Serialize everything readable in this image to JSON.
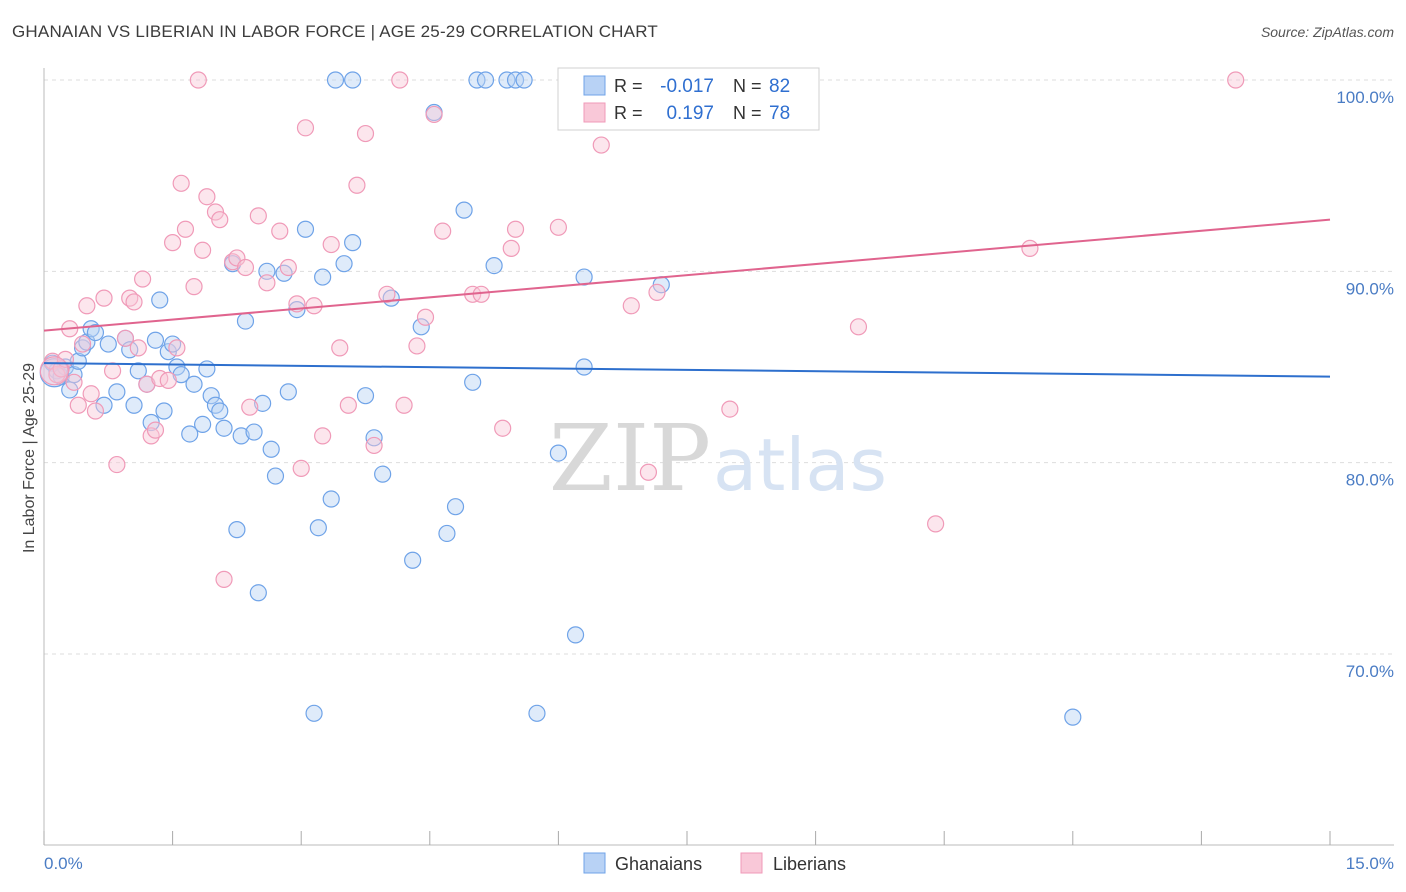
{
  "title": "GHANAIAN VS LIBERIAN IN LABOR FORCE | AGE 25-29 CORRELATION CHART",
  "source": "Source: ZipAtlas.com",
  "watermark": {
    "zip": "ZIP",
    "atlas": "atlas"
  },
  "colors": {
    "blue": "#6fa3e8",
    "blue_fill": "#b8d2f5",
    "blue_line": "#2d6fcd",
    "pink": "#f09ab8",
    "pink_fill": "#f9c8d8",
    "pink_line": "#e0648e",
    "grid": "#dddddd",
    "tick_text": "#4a7cc4"
  },
  "legend": {
    "r_label": "R =",
    "n_label": "N =",
    "blue": {
      "r": "-0.017",
      "n": "82"
    },
    "pink": {
      "r": "0.197",
      "n": "78"
    }
  },
  "bottom_legend": {
    "blue": "Ghanaians",
    "pink": "Liberians"
  },
  "chart_data": {
    "type": "scatter",
    "ylabel": "In Labor Force | Age 25-29",
    "xlim": [
      0,
      15
    ],
    "ylim": [
      60,
      100
    ],
    "x_tick_labels": [
      "0.0%",
      "15.0%"
    ],
    "y_ticks": [
      70,
      80,
      90,
      100
    ],
    "y_tick_labels": [
      "70.0%",
      "80.0%",
      "90.0%",
      "100.0%"
    ],
    "series": [
      {
        "name": "Ghanaians",
        "color": "blue",
        "trend": {
          "x": [
            0,
            15
          ],
          "y": [
            85.2,
            84.5
          ]
        },
        "points": [
          [
            0.1,
            85.2
          ],
          [
            0.15,
            84.8
          ],
          [
            0.2,
            84.5
          ],
          [
            0.25,
            85.0
          ],
          [
            0.3,
            83.8
          ],
          [
            0.35,
            84.6
          ],
          [
            0.4,
            85.3
          ],
          [
            0.45,
            86.0
          ],
          [
            0.5,
            86.3
          ],
          [
            0.55,
            87.0
          ],
          [
            0.6,
            86.8
          ],
          [
            0.7,
            83.0
          ],
          [
            0.75,
            86.2
          ],
          [
            0.85,
            83.7
          ],
          [
            0.95,
            86.5
          ],
          [
            1.0,
            85.9
          ],
          [
            1.05,
            83.0
          ],
          [
            1.1,
            84.8
          ],
          [
            1.2,
            84.1
          ],
          [
            1.25,
            82.1
          ],
          [
            1.3,
            86.4
          ],
          [
            1.35,
            88.5
          ],
          [
            1.4,
            82.7
          ],
          [
            1.45,
            85.8
          ],
          [
            1.5,
            86.2
          ],
          [
            1.55,
            85.0
          ],
          [
            1.6,
            84.6
          ],
          [
            1.7,
            81.5
          ],
          [
            1.75,
            84.1
          ],
          [
            1.85,
            82.0
          ],
          [
            1.9,
            84.9
          ],
          [
            1.95,
            83.5
          ],
          [
            2.0,
            83.0
          ],
          [
            2.05,
            82.7
          ],
          [
            2.1,
            81.8
          ],
          [
            2.2,
            90.4
          ],
          [
            2.25,
            76.5
          ],
          [
            2.3,
            81.4
          ],
          [
            2.35,
            87.4
          ],
          [
            2.45,
            81.6
          ],
          [
            2.5,
            73.2
          ],
          [
            2.55,
            83.1
          ],
          [
            2.6,
            90.0
          ],
          [
            2.65,
            80.7
          ],
          [
            2.7,
            79.3
          ],
          [
            2.8,
            89.9
          ],
          [
            2.85,
            83.7
          ],
          [
            2.95,
            88.0
          ],
          [
            3.05,
            92.2
          ],
          [
            3.15,
            66.9
          ],
          [
            3.2,
            76.6
          ],
          [
            3.25,
            89.7
          ],
          [
            3.35,
            78.1
          ],
          [
            3.4,
            100.0
          ],
          [
            3.5,
            90.4
          ],
          [
            3.6,
            91.5
          ],
          [
            3.6,
            100.0
          ],
          [
            3.75,
            83.5
          ],
          [
            3.85,
            81.3
          ],
          [
            3.95,
            79.4
          ],
          [
            4.05,
            88.6
          ],
          [
            4.3,
            74.9
          ],
          [
            4.4,
            87.1
          ],
          [
            4.55,
            98.3
          ],
          [
            4.7,
            76.3
          ],
          [
            4.8,
            77.7
          ],
          [
            4.9,
            93.2
          ],
          [
            5.0,
            84.2
          ],
          [
            5.05,
            100.0
          ],
          [
            5.15,
            100.0
          ],
          [
            5.25,
            90.3
          ],
          [
            5.4,
            100.0
          ],
          [
            5.5,
            100.0
          ],
          [
            5.6,
            100.0
          ],
          [
            5.75,
            66.9
          ],
          [
            6.0,
            80.5
          ],
          [
            6.2,
            71.0
          ],
          [
            6.3,
            85.0
          ],
          [
            6.3,
            89.7
          ],
          [
            7.2,
            89.3
          ],
          [
            12.0,
            66.7
          ],
          [
            0.12,
            84.7
          ]
        ]
      },
      {
        "name": "Liberians",
        "color": "pink",
        "trend": {
          "x": [
            0,
            15
          ],
          "y": [
            86.9,
            92.7
          ]
        },
        "points": [
          [
            0.1,
            85.3
          ],
          [
            0.15,
            84.6
          ],
          [
            0.2,
            84.9
          ],
          [
            0.25,
            85.4
          ],
          [
            0.3,
            87.0
          ],
          [
            0.35,
            84.2
          ],
          [
            0.4,
            83.0
          ],
          [
            0.45,
            86.2
          ],
          [
            0.5,
            88.2
          ],
          [
            0.55,
            83.6
          ],
          [
            0.6,
            82.7
          ],
          [
            0.7,
            88.6
          ],
          [
            0.8,
            84.8
          ],
          [
            0.85,
            79.9
          ],
          [
            0.95,
            86.5
          ],
          [
            1.0,
            88.6
          ],
          [
            1.05,
            88.4
          ],
          [
            1.1,
            86.0
          ],
          [
            1.15,
            89.6
          ],
          [
            1.2,
            84.1
          ],
          [
            1.25,
            81.4
          ],
          [
            1.3,
            81.7
          ],
          [
            1.35,
            84.4
          ],
          [
            1.45,
            84.3
          ],
          [
            1.5,
            91.5
          ],
          [
            1.55,
            86.0
          ],
          [
            1.6,
            94.6
          ],
          [
            1.65,
            92.2
          ],
          [
            1.75,
            89.2
          ],
          [
            1.85,
            91.1
          ],
          [
            1.9,
            93.9
          ],
          [
            2.0,
            93.1
          ],
          [
            2.05,
            92.7
          ],
          [
            2.1,
            73.9
          ],
          [
            2.2,
            90.5
          ],
          [
            2.25,
            90.7
          ],
          [
            2.35,
            90.2
          ],
          [
            2.4,
            82.9
          ],
          [
            2.5,
            92.9
          ],
          [
            2.6,
            89.4
          ],
          [
            2.75,
            92.1
          ],
          [
            2.85,
            90.2
          ],
          [
            2.95,
            88.3
          ],
          [
            3.0,
            79.7
          ],
          [
            3.05,
            97.5
          ],
          [
            3.15,
            88.2
          ],
          [
            3.25,
            81.4
          ],
          [
            3.35,
            91.4
          ],
          [
            3.45,
            86.0
          ],
          [
            3.55,
            83.0
          ],
          [
            3.65,
            94.5
          ],
          [
            3.75,
            97.2
          ],
          [
            3.85,
            80.9
          ],
          [
            4.0,
            88.8
          ],
          [
            4.15,
            100.0
          ],
          [
            4.2,
            83.0
          ],
          [
            4.35,
            86.1
          ],
          [
            4.45,
            87.6
          ],
          [
            4.55,
            98.2
          ],
          [
            4.65,
            92.1
          ],
          [
            5.0,
            88.8
          ],
          [
            5.1,
            88.8
          ],
          [
            5.35,
            81.8
          ],
          [
            5.45,
            91.2
          ],
          [
            5.5,
            92.2
          ],
          [
            6.0,
            92.3
          ],
          [
            6.4,
            100.0
          ],
          [
            6.5,
            96.6
          ],
          [
            6.85,
            88.2
          ],
          [
            7.05,
            79.5
          ],
          [
            7.15,
            88.9
          ],
          [
            8.0,
            82.8
          ],
          [
            9.5,
            87.1
          ],
          [
            10.4,
            76.8
          ],
          [
            11.5,
            91.2
          ],
          [
            13.9,
            100.0
          ],
          [
            1.8,
            100.0
          ],
          [
            0.12,
            84.8
          ]
        ]
      }
    ]
  }
}
